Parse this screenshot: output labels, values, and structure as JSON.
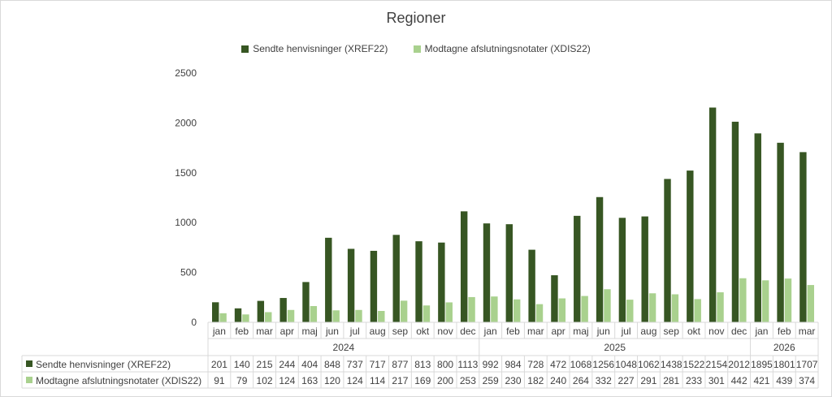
{
  "chart_data": {
    "type": "bar",
    "title": "Regioner",
    "ylim": [
      0,
      2500
    ],
    "yticks": [
      0,
      500,
      1000,
      1500,
      2000,
      2500
    ],
    "grid": false,
    "legend_position": "top",
    "categories": [
      "jan",
      "feb",
      "mar",
      "apr",
      "maj",
      "jun",
      "jul",
      "aug",
      "sep",
      "okt",
      "nov",
      "dec",
      "jan",
      "feb",
      "mar",
      "apr",
      "maj",
      "jun",
      "jul",
      "aug",
      "sep",
      "okt",
      "nov",
      "dec",
      "jan",
      "feb",
      "mar"
    ],
    "year_groups": [
      {
        "label": "2024",
        "count": 12
      },
      {
        "label": "2025",
        "count": 12
      },
      {
        "label": "2026",
        "count": 3
      }
    ],
    "series": [
      {
        "name": "Sendte henvisninger (XREF22)",
        "color": "#375623",
        "values": [
          201,
          140,
          215,
          244,
          404,
          848,
          737,
          717,
          877,
          813,
          800,
          1113,
          992,
          984,
          728,
          472,
          1068,
          1256,
          1048,
          1062,
          1438,
          1522,
          2154,
          2012,
          1895,
          1801,
          1707
        ]
      },
      {
        "name": "Modtagne afslutningsnotater (XDIS22)",
        "color": "#a9d18e",
        "values": [
          91,
          79,
          102,
          124,
          163,
          120,
          124,
          114,
          217,
          169,
          200,
          253,
          259,
          230,
          182,
          240,
          264,
          332,
          227,
          291,
          281,
          233,
          301,
          442,
          421,
          439,
          374
        ]
      }
    ],
    "data_table": true
  }
}
